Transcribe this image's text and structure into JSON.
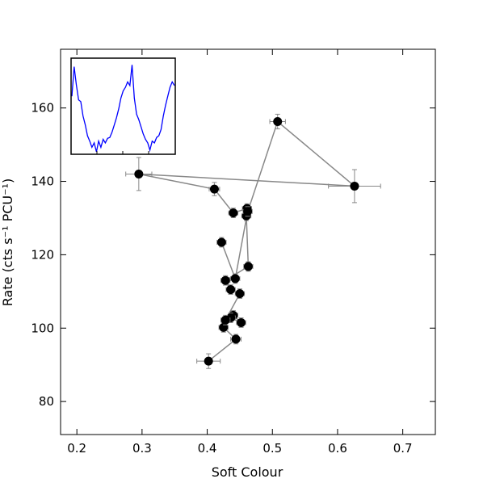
{
  "chart_data": {
    "type": "scatter",
    "xlabel": "Soft Colour",
    "ylabel": "Rate (cts s⁻¹ PCU⁻¹)",
    "xlim": [
      0.175,
      0.75
    ],
    "ylim": [
      71,
      176
    ],
    "xticks": [
      0.2,
      0.3,
      0.4,
      0.5,
      0.6,
      0.7
    ],
    "xtick_labels": [
      "0.2",
      "0.3",
      "0.4",
      "0.5",
      "0.6",
      "0.7"
    ],
    "yticks": [
      80,
      100,
      120,
      140,
      160
    ],
    "ytick_labels": [
      "80",
      "100",
      "120",
      "140",
      "160"
    ],
    "grid": false,
    "colors": {
      "line": "#888888",
      "marker": "#000000",
      "errorbar": "#888888",
      "inset_line": "#0000ff"
    },
    "series": [
      {
        "connected": true,
        "points": [
          {
            "x": 0.402,
            "y": 91.0,
            "xerr": 0.018,
            "yerr": 2.0
          },
          {
            "x": 0.444,
            "y": 97.0,
            "xerr": 0.008,
            "yerr": 1.3
          },
          {
            "x": 0.425,
            "y": 100.2,
            "xerr": 0.007,
            "yerr": 1.3
          },
          {
            "x": 0.44,
            "y": 103.5,
            "xerr": 0.007,
            "yerr": 1.3
          },
          {
            "x": 0.452,
            "y": 101.5,
            "xerr": 0.007,
            "yerr": 1.3
          },
          {
            "x": 0.436,
            "y": 102.8,
            "xerr": 0.007,
            "yerr": 1.3
          },
          {
            "x": 0.428,
            "y": 102.2,
            "xerr": 0.007,
            "yerr": 1.3
          },
          {
            "x": 0.45,
            "y": 109.4,
            "xerr": 0.007,
            "yerr": 1.3
          },
          {
            "x": 0.436,
            "y": 110.5,
            "xerr": 0.007,
            "yerr": 1.3
          },
          {
            "x": 0.428,
            "y": 113.0,
            "xerr": 0.007,
            "yerr": 1.3
          },
          {
            "x": 0.463,
            "y": 116.8,
            "xerr": 0.007,
            "yerr": 1.3
          },
          {
            "x": 0.46,
            "y": 130.6,
            "xerr": 0.007,
            "yerr": 1.3
          },
          {
            "x": 0.508,
            "y": 156.3,
            "xerr": 0.012,
            "yerr": 2.0
          },
          {
            "x": 0.626,
            "y": 138.7,
            "xerr": 0.04,
            "yerr": 4.5
          },
          {
            "x": 0.295,
            "y": 142.0,
            "xerr": 0.02,
            "yerr": 4.5
          },
          {
            "x": 0.411,
            "y": 137.9,
            "xerr": 0.008,
            "yerr": 1.8
          },
          {
            "x": 0.44,
            "y": 131.4,
            "xerr": 0.007,
            "yerr": 1.3
          },
          {
            "x": 0.461,
            "y": 132.6,
            "xerr": 0.007,
            "yerr": 1.3
          },
          {
            "x": 0.462,
            "y": 131.8,
            "xerr": 0.007,
            "yerr": 1.3
          },
          {
            "x": 0.443,
            "y": 113.5,
            "xerr": 0.007,
            "yerr": 1.3
          },
          {
            "x": 0.422,
            "y": 123.4,
            "xerr": 0.007,
            "yerr": 1.3
          }
        ]
      }
    ],
    "inset": {
      "type": "line",
      "ylim": [
        0,
        1
      ],
      "values": [
        0.62,
        0.95,
        0.75,
        0.58,
        0.56,
        0.4,
        0.3,
        0.18,
        0.12,
        0.05,
        0.1,
        0.0,
        0.12,
        0.05,
        0.14,
        0.1,
        0.15,
        0.16,
        0.22,
        0.3,
        0.38,
        0.48,
        0.6,
        0.68,
        0.72,
        0.78,
        0.74,
        0.97,
        0.6,
        0.42,
        0.36,
        0.28,
        0.2,
        0.14,
        0.1,
        0.02,
        0.12,
        0.1,
        0.16,
        0.18,
        0.25,
        0.4,
        0.52,
        0.62,
        0.72,
        0.78,
        0.74
      ]
    }
  }
}
